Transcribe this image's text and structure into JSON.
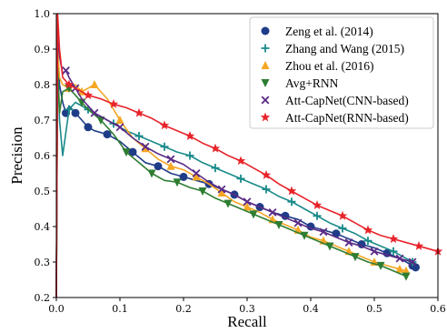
{
  "chart_data": {
    "type": "line",
    "xlabel": "Recall",
    "ylabel": "Precision",
    "xlim": [
      0.0,
      0.6
    ],
    "ylim": [
      0.2,
      1.0
    ],
    "xticks": [
      "0.0",
      "0.1",
      "0.2",
      "0.3",
      "0.4",
      "0.5",
      "0.6"
    ],
    "yticks": [
      "0.2",
      "0.3",
      "0.4",
      "0.5",
      "0.6",
      "0.7",
      "0.8",
      "0.9",
      "1.0"
    ],
    "grid": false,
    "legend_position": "top-right",
    "series": [
      {
        "name": "Zeng et al. (2014)",
        "color": "#1f3c88",
        "marker": "circle",
        "x": [
          0.0,
          0.002,
          0.005,
          0.01,
          0.015,
          0.02,
          0.03,
          0.04,
          0.05,
          0.06,
          0.08,
          0.1,
          0.12,
          0.14,
          0.16,
          0.18,
          0.2,
          0.22,
          0.24,
          0.26,
          0.28,
          0.3,
          0.32,
          0.34,
          0.36,
          0.38,
          0.4,
          0.42,
          0.44,
          0.46,
          0.48,
          0.5,
          0.52,
          0.54,
          0.56,
          0.565
        ],
        "y": [
          0.2,
          0.9,
          0.8,
          0.75,
          0.72,
          0.74,
          0.72,
          0.7,
          0.68,
          0.67,
          0.66,
          0.64,
          0.61,
          0.58,
          0.57,
          0.55,
          0.54,
          0.53,
          0.52,
          0.505,
          0.49,
          0.47,
          0.455,
          0.44,
          0.43,
          0.42,
          0.4,
          0.39,
          0.38,
          0.365,
          0.35,
          0.34,
          0.325,
          0.31,
          0.29,
          0.285
        ]
      },
      {
        "name": "Zhang and Wang (2015)",
        "color": "#1a8a8a",
        "marker": "plus",
        "x": [
          0.0,
          0.002,
          0.005,
          0.01,
          0.02,
          0.03,
          0.05,
          0.07,
          0.09,
          0.11,
          0.13,
          0.15,
          0.17,
          0.19,
          0.21,
          0.23,
          0.25,
          0.27,
          0.29,
          0.31,
          0.33,
          0.35,
          0.37,
          0.39,
          0.41,
          0.43,
          0.45,
          0.47,
          0.49,
          0.51,
          0.53,
          0.55,
          0.56
        ],
        "y": [
          0.2,
          0.9,
          0.7,
          0.6,
          0.73,
          0.75,
          0.73,
          0.71,
          0.69,
          0.67,
          0.655,
          0.64,
          0.625,
          0.61,
          0.6,
          0.58,
          0.565,
          0.55,
          0.535,
          0.52,
          0.505,
          0.485,
          0.47,
          0.45,
          0.43,
          0.41,
          0.395,
          0.38,
          0.36,
          0.345,
          0.33,
          0.31,
          0.3
        ]
      },
      {
        "name": "Zhou et al. (2016)",
        "color": "#f5a623",
        "marker": "triangle-up",
        "x": [
          0.0,
          0.002,
          0.005,
          0.01,
          0.02,
          0.03,
          0.04,
          0.05,
          0.06,
          0.08,
          0.1,
          0.12,
          0.14,
          0.16,
          0.18,
          0.2,
          0.22,
          0.24,
          0.26,
          0.28,
          0.3,
          0.32,
          0.34,
          0.36,
          0.38,
          0.4,
          0.42,
          0.44,
          0.46,
          0.48,
          0.5,
          0.52,
          0.54,
          0.55
        ],
        "y": [
          0.2,
          0.9,
          0.82,
          0.8,
          0.79,
          0.8,
          0.78,
          0.79,
          0.8,
          0.76,
          0.7,
          0.65,
          0.62,
          0.59,
          0.57,
          0.56,
          0.54,
          0.52,
          0.495,
          0.47,
          0.455,
          0.44,
          0.42,
          0.405,
          0.39,
          0.37,
          0.36,
          0.345,
          0.33,
          0.315,
          0.3,
          0.29,
          0.28,
          0.275
        ]
      },
      {
        "name": "Avg+RNN",
        "color": "#2e7d32",
        "marker": "triangle-down",
        "x": [
          0.0,
          0.002,
          0.005,
          0.01,
          0.02,
          0.03,
          0.04,
          0.05,
          0.07,
          0.09,
          0.11,
          0.13,
          0.15,
          0.17,
          0.19,
          0.21,
          0.23,
          0.25,
          0.27,
          0.29,
          0.31,
          0.33,
          0.35,
          0.37,
          0.39,
          0.41,
          0.43,
          0.45,
          0.47,
          0.49,
          0.51,
          0.53,
          0.55
        ],
        "y": [
          0.2,
          0.85,
          0.72,
          0.78,
          0.79,
          0.77,
          0.75,
          0.73,
          0.7,
          0.66,
          0.61,
          0.58,
          0.55,
          0.53,
          0.525,
          0.51,
          0.5,
          0.48,
          0.465,
          0.45,
          0.435,
          0.42,
          0.405,
          0.39,
          0.375,
          0.36,
          0.345,
          0.33,
          0.315,
          0.3,
          0.29,
          0.275,
          0.26
        ]
      },
      {
        "name": "Att-CapNet(CNN-based)",
        "color": "#5b2a86",
        "marker": "x",
        "x": [
          0.0,
          0.002,
          0.005,
          0.01,
          0.015,
          0.02,
          0.03,
          0.04,
          0.06,
          0.08,
          0.1,
          0.12,
          0.14,
          0.16,
          0.18,
          0.2,
          0.22,
          0.24,
          0.26,
          0.28,
          0.3,
          0.32,
          0.34,
          0.36,
          0.38,
          0.4,
          0.42,
          0.44,
          0.46,
          0.48,
          0.5,
          0.52,
          0.54,
          0.56
        ],
        "y": [
          0.2,
          0.95,
          0.88,
          0.83,
          0.84,
          0.82,
          0.79,
          0.76,
          0.72,
          0.7,
          0.68,
          0.65,
          0.625,
          0.605,
          0.59,
          0.575,
          0.55,
          0.525,
          0.505,
          0.49,
          0.47,
          0.455,
          0.44,
          0.425,
          0.41,
          0.395,
          0.385,
          0.37,
          0.355,
          0.345,
          0.33,
          0.32,
          0.31,
          0.3
        ]
      },
      {
        "name": "Att-CapNet(RNN-based)",
        "color": "#e8232a",
        "marker": "star",
        "x": [
          0.0,
          0.002,
          0.005,
          0.01,
          0.02,
          0.03,
          0.05,
          0.07,
          0.09,
          0.11,
          0.13,
          0.15,
          0.17,
          0.19,
          0.21,
          0.23,
          0.25,
          0.27,
          0.29,
          0.31,
          0.33,
          0.35,
          0.37,
          0.39,
          0.41,
          0.43,
          0.45,
          0.47,
          0.49,
          0.51,
          0.53,
          0.55,
          0.57,
          0.6
        ],
        "y": [
          0.2,
          1.0,
          0.9,
          0.82,
          0.8,
          0.79,
          0.77,
          0.76,
          0.745,
          0.735,
          0.72,
          0.705,
          0.685,
          0.67,
          0.655,
          0.635,
          0.62,
          0.6,
          0.585,
          0.565,
          0.545,
          0.52,
          0.5,
          0.48,
          0.46,
          0.445,
          0.43,
          0.41,
          0.39,
          0.375,
          0.365,
          0.355,
          0.345,
          0.33
        ]
      }
    ]
  }
}
